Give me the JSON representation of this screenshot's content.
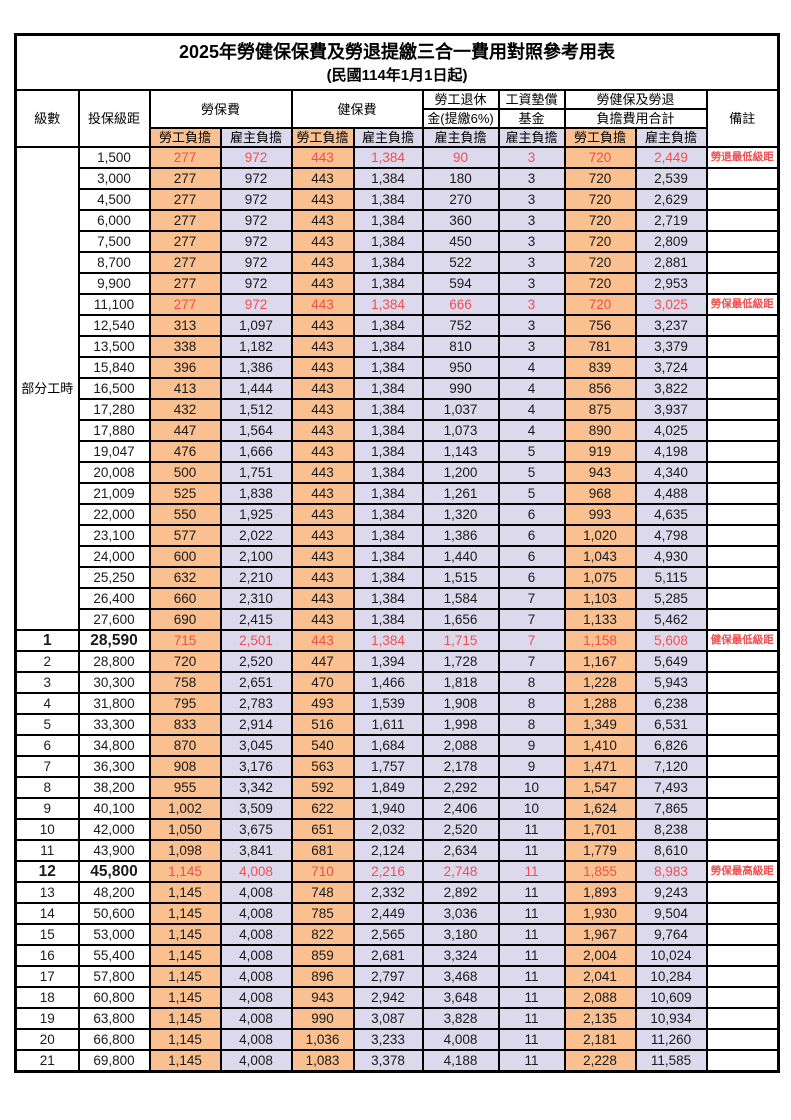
{
  "title": "2025年勞健保保費及勞退提繳三合一費用對照參考用表",
  "subtitle": "(民國114年1月1日起)",
  "colors": {
    "employee_col_bg": "#FAC08F",
    "employer_col_bg": "#DCD9EC",
    "highlight_red": "#EF4F4F"
  },
  "header": {
    "level": "級數",
    "bracket": "投保級距",
    "labor_ins": "勞保費",
    "health_ins": "健保費",
    "pension_line1": "勞工退休",
    "pension_line2": "金(提繳6%)",
    "wage_fund_line1": "工資墊償",
    "wage_fund_line2": "基金",
    "total_line1": "勞健保及勞退",
    "total_line2": "負擔費用合計",
    "remark": "備註",
    "employee_share": "勞工負擔",
    "employer_share": "雇主負擔"
  },
  "part_time_label": "部分工時",
  "rows": [
    {
      "level": "",
      "bracket": "1,500",
      "v": [
        "277",
        "972",
        "443",
        "1,384",
        "90",
        "3",
        "720",
        "2,449"
      ],
      "remark": "勞退最低級距",
      "red": true,
      "bold": false
    },
    {
      "level": "",
      "bracket": "3,000",
      "v": [
        "277",
        "972",
        "443",
        "1,384",
        "180",
        "3",
        "720",
        "2,539"
      ],
      "remark": "",
      "red": false,
      "bold": false
    },
    {
      "level": "",
      "bracket": "4,500",
      "v": [
        "277",
        "972",
        "443",
        "1,384",
        "270",
        "3",
        "720",
        "2,629"
      ],
      "remark": "",
      "red": false,
      "bold": false
    },
    {
      "level": "",
      "bracket": "6,000",
      "v": [
        "277",
        "972",
        "443",
        "1,384",
        "360",
        "3",
        "720",
        "2,719"
      ],
      "remark": "",
      "red": false,
      "bold": false
    },
    {
      "level": "",
      "bracket": "7,500",
      "v": [
        "277",
        "972",
        "443",
        "1,384",
        "450",
        "3",
        "720",
        "2,809"
      ],
      "remark": "",
      "red": false,
      "bold": false
    },
    {
      "level": "",
      "bracket": "8,700",
      "v": [
        "277",
        "972",
        "443",
        "1,384",
        "522",
        "3",
        "720",
        "2,881"
      ],
      "remark": "",
      "red": false,
      "bold": false
    },
    {
      "level": "",
      "bracket": "9,900",
      "v": [
        "277",
        "972",
        "443",
        "1,384",
        "594",
        "3",
        "720",
        "2,953"
      ],
      "remark": "",
      "red": false,
      "bold": false
    },
    {
      "level": "",
      "bracket": "11,100",
      "v": [
        "277",
        "972",
        "443",
        "1,384",
        "666",
        "3",
        "720",
        "3,025"
      ],
      "remark": "勞保最低級距",
      "red": true,
      "bold": false
    },
    {
      "level": "",
      "bracket": "12,540",
      "v": [
        "313",
        "1,097",
        "443",
        "1,384",
        "752",
        "3",
        "756",
        "3,237"
      ],
      "remark": "",
      "red": false,
      "bold": false
    },
    {
      "level": "",
      "bracket": "13,500",
      "v": [
        "338",
        "1,182",
        "443",
        "1,384",
        "810",
        "3",
        "781",
        "3,379"
      ],
      "remark": "",
      "red": false,
      "bold": false
    },
    {
      "level": "",
      "bracket": "15,840",
      "v": [
        "396",
        "1,386",
        "443",
        "1,384",
        "950",
        "4",
        "839",
        "3,724"
      ],
      "remark": "",
      "red": false,
      "bold": false
    },
    {
      "level": "",
      "bracket": "16,500",
      "v": [
        "413",
        "1,444",
        "443",
        "1,384",
        "990",
        "4",
        "856",
        "3,822"
      ],
      "remark": "",
      "red": false,
      "bold": false
    },
    {
      "level": "",
      "bracket": "17,280",
      "v": [
        "432",
        "1,512",
        "443",
        "1,384",
        "1,037",
        "4",
        "875",
        "3,937"
      ],
      "remark": "",
      "red": false,
      "bold": false
    },
    {
      "level": "",
      "bracket": "17,880",
      "v": [
        "447",
        "1,564",
        "443",
        "1,384",
        "1,073",
        "4",
        "890",
        "4,025"
      ],
      "remark": "",
      "red": false,
      "bold": false
    },
    {
      "level": "",
      "bracket": "19,047",
      "v": [
        "476",
        "1,666",
        "443",
        "1,384",
        "1,143",
        "5",
        "919",
        "4,198"
      ],
      "remark": "",
      "red": false,
      "bold": false
    },
    {
      "level": "",
      "bracket": "20,008",
      "v": [
        "500",
        "1,751",
        "443",
        "1,384",
        "1,200",
        "5",
        "943",
        "4,340"
      ],
      "remark": "",
      "red": false,
      "bold": false
    },
    {
      "level": "",
      "bracket": "21,009",
      "v": [
        "525",
        "1,838",
        "443",
        "1,384",
        "1,261",
        "5",
        "968",
        "4,488"
      ],
      "remark": "",
      "red": false,
      "bold": false
    },
    {
      "level": "",
      "bracket": "22,000",
      "v": [
        "550",
        "1,925",
        "443",
        "1,384",
        "1,320",
        "6",
        "993",
        "4,635"
      ],
      "remark": "",
      "red": false,
      "bold": false
    },
    {
      "level": "",
      "bracket": "23,100",
      "v": [
        "577",
        "2,022",
        "443",
        "1,384",
        "1,386",
        "6",
        "1,020",
        "4,798"
      ],
      "remark": "",
      "red": false,
      "bold": false
    },
    {
      "level": "",
      "bracket": "24,000",
      "v": [
        "600",
        "2,100",
        "443",
        "1,384",
        "1,440",
        "6",
        "1,043",
        "4,930"
      ],
      "remark": "",
      "red": false,
      "bold": false
    },
    {
      "level": "",
      "bracket": "25,250",
      "v": [
        "632",
        "2,210",
        "443",
        "1,384",
        "1,515",
        "6",
        "1,075",
        "5,115"
      ],
      "remark": "",
      "red": false,
      "bold": false
    },
    {
      "level": "",
      "bracket": "26,400",
      "v": [
        "660",
        "2,310",
        "443",
        "1,384",
        "1,584",
        "7",
        "1,103",
        "5,285"
      ],
      "remark": "",
      "red": false,
      "bold": false
    },
    {
      "level": "",
      "bracket": "27,600",
      "v": [
        "690",
        "2,415",
        "443",
        "1,384",
        "1,656",
        "7",
        "1,133",
        "5,462"
      ],
      "remark": "",
      "red": false,
      "bold": false
    },
    {
      "level": "1",
      "bracket": "28,590",
      "v": [
        "715",
        "2,501",
        "443",
        "1,384",
        "1,715",
        "7",
        "1,158",
        "5,608"
      ],
      "remark": "健保最低級距",
      "red": true,
      "bold": true
    },
    {
      "level": "2",
      "bracket": "28,800",
      "v": [
        "720",
        "2,520",
        "447",
        "1,394",
        "1,728",
        "7",
        "1,167",
        "5,649"
      ],
      "remark": "",
      "red": false,
      "bold": false
    },
    {
      "level": "3",
      "bracket": "30,300",
      "v": [
        "758",
        "2,651",
        "470",
        "1,466",
        "1,818",
        "8",
        "1,228",
        "5,943"
      ],
      "remark": "",
      "red": false,
      "bold": false
    },
    {
      "level": "4",
      "bracket": "31,800",
      "v": [
        "795",
        "2,783",
        "493",
        "1,539",
        "1,908",
        "8",
        "1,288",
        "6,238"
      ],
      "remark": "",
      "red": false,
      "bold": false
    },
    {
      "level": "5",
      "bracket": "33,300",
      "v": [
        "833",
        "2,914",
        "516",
        "1,611",
        "1,998",
        "8",
        "1,349",
        "6,531"
      ],
      "remark": "",
      "red": false,
      "bold": false
    },
    {
      "level": "6",
      "bracket": "34,800",
      "v": [
        "870",
        "3,045",
        "540",
        "1,684",
        "2,088",
        "9",
        "1,410",
        "6,826"
      ],
      "remark": "",
      "red": false,
      "bold": false
    },
    {
      "level": "7",
      "bracket": "36,300",
      "v": [
        "908",
        "3,176",
        "563",
        "1,757",
        "2,178",
        "9",
        "1,471",
        "7,120"
      ],
      "remark": "",
      "red": false,
      "bold": false
    },
    {
      "level": "8",
      "bracket": "38,200",
      "v": [
        "955",
        "3,342",
        "592",
        "1,849",
        "2,292",
        "10",
        "1,547",
        "7,493"
      ],
      "remark": "",
      "red": false,
      "bold": false
    },
    {
      "level": "9",
      "bracket": "40,100",
      "v": [
        "1,002",
        "3,509",
        "622",
        "1,940",
        "2,406",
        "10",
        "1,624",
        "7,865"
      ],
      "remark": "",
      "red": false,
      "bold": false
    },
    {
      "level": "10",
      "bracket": "42,000",
      "v": [
        "1,050",
        "3,675",
        "651",
        "2,032",
        "2,520",
        "11",
        "1,701",
        "8,238"
      ],
      "remark": "",
      "red": false,
      "bold": false
    },
    {
      "level": "11",
      "bracket": "43,900",
      "v": [
        "1,098",
        "3,841",
        "681",
        "2,124",
        "2,634",
        "11",
        "1,779",
        "8,610"
      ],
      "remark": "",
      "red": false,
      "bold": false
    },
    {
      "level": "12",
      "bracket": "45,800",
      "v": [
        "1,145",
        "4,008",
        "710",
        "2,216",
        "2,748",
        "11",
        "1,855",
        "8,983"
      ],
      "remark": "勞保最高級距",
      "red": true,
      "bold": true
    },
    {
      "level": "13",
      "bracket": "48,200",
      "v": [
        "1,145",
        "4,008",
        "748",
        "2,332",
        "2,892",
        "11",
        "1,893",
        "9,243"
      ],
      "remark": "",
      "red": false,
      "bold": false
    },
    {
      "level": "14",
      "bracket": "50,600",
      "v": [
        "1,145",
        "4,008",
        "785",
        "2,449",
        "3,036",
        "11",
        "1,930",
        "9,504"
      ],
      "remark": "",
      "red": false,
      "bold": false
    },
    {
      "level": "15",
      "bracket": "53,000",
      "v": [
        "1,145",
        "4,008",
        "822",
        "2,565",
        "3,180",
        "11",
        "1,967",
        "9,764"
      ],
      "remark": "",
      "red": false,
      "bold": false
    },
    {
      "level": "16",
      "bracket": "55,400",
      "v": [
        "1,145",
        "4,008",
        "859",
        "2,681",
        "3,324",
        "11",
        "2,004",
        "10,024"
      ],
      "remark": "",
      "red": false,
      "bold": false
    },
    {
      "level": "17",
      "bracket": "57,800",
      "v": [
        "1,145",
        "4,008",
        "896",
        "2,797",
        "3,468",
        "11",
        "2,041",
        "10,284"
      ],
      "remark": "",
      "red": false,
      "bold": false
    },
    {
      "level": "18",
      "bracket": "60,800",
      "v": [
        "1,145",
        "4,008",
        "943",
        "2,942",
        "3,648",
        "11",
        "2,088",
        "10,609"
      ],
      "remark": "",
      "red": false,
      "bold": false
    },
    {
      "level": "19",
      "bracket": "63,800",
      "v": [
        "1,145",
        "4,008",
        "990",
        "3,087",
        "3,828",
        "11",
        "2,135",
        "10,934"
      ],
      "remark": "",
      "red": false,
      "bold": false
    },
    {
      "level": "20",
      "bracket": "66,800",
      "v": [
        "1,145",
        "4,008",
        "1,036",
        "3,233",
        "4,008",
        "11",
        "2,181",
        "11,260"
      ],
      "remark": "",
      "red": false,
      "bold": false
    },
    {
      "level": "21",
      "bracket": "69,800",
      "v": [
        "1,145",
        "4,008",
        "1,083",
        "3,378",
        "4,188",
        "11",
        "2,228",
        "11,585"
      ],
      "remark": "",
      "red": false,
      "bold": false
    }
  ]
}
